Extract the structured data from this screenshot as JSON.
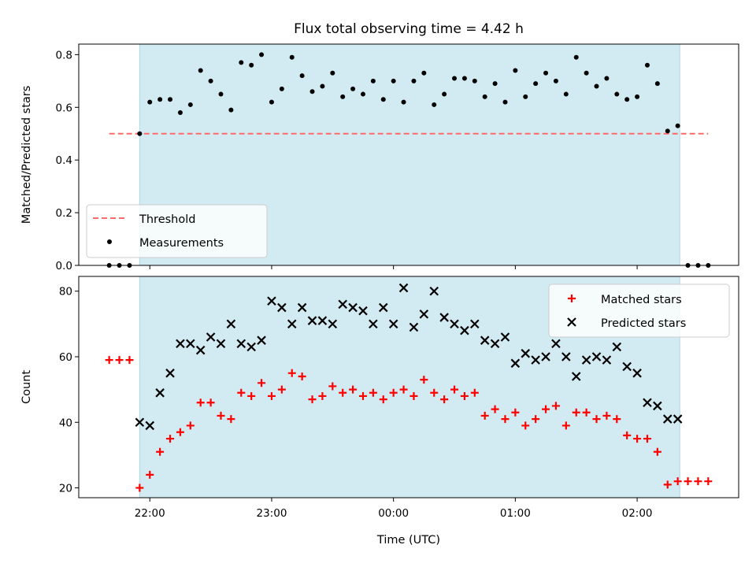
{
  "chart_data": [
    {
      "type": "scatter",
      "title": "Flux total observing time = 4.42 h",
      "xlabel": "",
      "ylabel": "Matched/Predicted stars",
      "ylim": [
        0,
        0.84
      ],
      "yticks": [
        "0.0",
        "0.2",
        "0.4",
        "0.6",
        "0.8"
      ],
      "ytick_values": [
        0,
        0.2,
        0.4,
        0.6,
        0.8
      ],
      "xlim": [
        "21:25",
        "02:50"
      ],
      "xticks": [
        "22:00",
        "23:00",
        "00:00",
        "01:00",
        "02:00"
      ],
      "xtick_labels_shown": false,
      "observing_window": [
        "21:55",
        "02:21"
      ],
      "observing_window_color": "#add8e6",
      "threshold": {
        "name": "Threshold",
        "value": 0.5,
        "x_range": [
          "21:40",
          "02:35"
        ],
        "color": "#ff6b6b",
        "style": "dashed"
      },
      "series": [
        {
          "name": "Measurements",
          "marker": "dot",
          "color": "#000000",
          "x": [
            "21:40",
            "21:45",
            "21:50",
            "21:55",
            "22:00",
            "22:05",
            "22:10",
            "22:15",
            "22:20",
            "22:25",
            "22:30",
            "22:35",
            "22:40",
            "22:45",
            "22:50",
            "22:55",
            "23:00",
            "23:05",
            "23:10",
            "23:15",
            "23:20",
            "23:25",
            "23:30",
            "23:35",
            "23:40",
            "23:45",
            "23:50",
            "23:55",
            "00:00",
            "00:05",
            "00:10",
            "00:15",
            "00:20",
            "00:25",
            "00:30",
            "00:35",
            "00:40",
            "00:45",
            "00:50",
            "00:55",
            "01:00",
            "01:05",
            "01:10",
            "01:15",
            "01:20",
            "01:25",
            "01:30",
            "01:35",
            "01:40",
            "01:45",
            "01:50",
            "01:55",
            "02:00",
            "02:05",
            "02:10",
            "02:15",
            "02:20",
            "02:25",
            "02:30",
            "02:35"
          ],
          "y": [
            0,
            0,
            0,
            0.5,
            0.62,
            0.63,
            0.63,
            0.58,
            0.61,
            0.74,
            0.7,
            0.65,
            0.59,
            0.77,
            0.76,
            0.8,
            0.62,
            0.67,
            0.79,
            0.72,
            0.66,
            0.68,
            0.73,
            0.64,
            0.67,
            0.65,
            0.7,
            0.63,
            0.7,
            0.62,
            0.7,
            0.73,
            0.61,
            0.65,
            0.71,
            0.71,
            0.7,
            0.64,
            0.69,
            0.62,
            0.74,
            0.64,
            0.69,
            0.73,
            0.7,
            0.65,
            0.79,
            0.73,
            0.68,
            0.71,
            0.65,
            0.63,
            0.64,
            0.76,
            0.69,
            0.51,
            0.53,
            0,
            0,
            0
          ]
        }
      ],
      "legend": {
        "position": "lower-left",
        "entries": [
          "Threshold",
          "Measurements"
        ]
      }
    },
    {
      "type": "scatter",
      "title": "",
      "xlabel": "Time (UTC)",
      "ylabel": "Count",
      "ylim": [
        17,
        84.5
      ],
      "yticks": [
        "20",
        "40",
        "60",
        "80"
      ],
      "ytick_values": [
        20,
        40,
        60,
        80
      ],
      "xlim": [
        "21:25",
        "02:50"
      ],
      "xticks": [
        "22:00",
        "23:00",
        "00:00",
        "01:00",
        "02:00"
      ],
      "xtick_labels_shown": true,
      "observing_window": [
        "21:55",
        "02:21"
      ],
      "observing_window_color": "#add8e6",
      "series": [
        {
          "name": "Matched stars",
          "marker": "plus",
          "color": "#ff0000",
          "x": [
            "21:40",
            "21:45",
            "21:50",
            "21:55",
            "22:00",
            "22:05",
            "22:10",
            "22:15",
            "22:20",
            "22:25",
            "22:30",
            "22:35",
            "22:40",
            "22:45",
            "22:50",
            "22:55",
            "23:00",
            "23:05",
            "23:10",
            "23:15",
            "23:20",
            "23:25",
            "23:30",
            "23:35",
            "23:40",
            "23:45",
            "23:50",
            "23:55",
            "00:00",
            "00:05",
            "00:10",
            "00:15",
            "00:20",
            "00:25",
            "00:30",
            "00:35",
            "00:40",
            "00:45",
            "00:50",
            "00:55",
            "01:00",
            "01:05",
            "01:10",
            "01:15",
            "01:20",
            "01:25",
            "01:30",
            "01:35",
            "01:40",
            "01:45",
            "01:50",
            "01:55",
            "02:00",
            "02:05",
            "02:10",
            "02:15",
            "02:20",
            "02:25",
            "02:30",
            "02:35"
          ],
          "y": [
            59,
            59,
            59,
            20,
            24,
            31,
            35,
            37,
            39,
            46,
            46,
            42,
            41,
            49,
            48,
            52,
            48,
            50,
            55,
            54,
            47,
            48,
            51,
            49,
            50,
            48,
            49,
            47,
            49,
            50,
            48,
            53,
            49,
            47,
            50,
            48,
            49,
            42,
            44,
            41,
            43,
            39,
            41,
            44,
            45,
            39,
            43,
            43,
            41,
            42,
            41,
            36,
            35,
            35,
            31,
            21,
            22,
            22,
            22,
            22
          ]
        },
        {
          "name": "Predicted stars",
          "marker": "x",
          "color": "#000000",
          "x": [
            "21:55",
            "22:00",
            "22:05",
            "22:10",
            "22:15",
            "22:20",
            "22:25",
            "22:30",
            "22:35",
            "22:40",
            "22:45",
            "22:50",
            "22:55",
            "23:00",
            "23:05",
            "23:10",
            "23:15",
            "23:20",
            "23:25",
            "23:30",
            "23:35",
            "23:40",
            "23:45",
            "23:50",
            "23:55",
            "00:00",
            "00:05",
            "00:10",
            "00:15",
            "00:20",
            "00:25",
            "00:30",
            "00:35",
            "00:40",
            "00:45",
            "00:50",
            "00:55",
            "01:00",
            "01:05",
            "01:10",
            "01:15",
            "01:20",
            "01:25",
            "01:30",
            "01:35",
            "01:40",
            "01:45",
            "01:50",
            "01:55",
            "02:00",
            "02:05",
            "02:10",
            "02:15",
            "02:20"
          ],
          "y": [
            40,
            39,
            49,
            55,
            64,
            64,
            62,
            66,
            64,
            70,
            64,
            63,
            65,
            77,
            75,
            70,
            75,
            71,
            71,
            70,
            76,
            75,
            74,
            70,
            75,
            70,
            81,
            69,
            73,
            80,
            72,
            70,
            68,
            70,
            65,
            64,
            66,
            58,
            61,
            59,
            60,
            64,
            60,
            54,
            59,
            60,
            59,
            63,
            57,
            55,
            46,
            45,
            41,
            41
          ]
        }
      ],
      "legend": {
        "position": "upper-right",
        "entries": [
          "Matched stars",
          "Predicted stars"
        ]
      }
    }
  ]
}
